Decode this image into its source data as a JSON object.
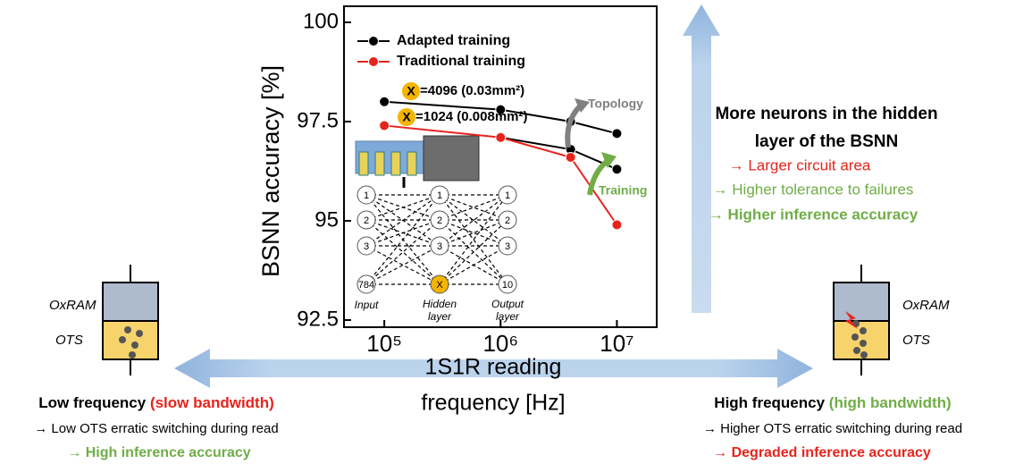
{
  "chart_data": {
    "type": "line",
    "ylabel": "BSNN accuracy [%]",
    "xlabel": [
      "1S1R reading",
      "frequency [Hz]"
    ],
    "x": [
      100000,
      1000000,
      4000000,
      10000000
    ],
    "series": [
      {
        "name": "Adapted training",
        "color": "#000000",
        "values": [
          98.0,
          97.8,
          97.5,
          97.2
        ]
      },
      {
        "color": "#000000",
        "values": [
          null,
          97.1,
          96.8,
          96.3
        ]
      },
      {
        "name": "Traditional training",
        "color": "#e8231c",
        "values": [
          97.4,
          97.1,
          96.6,
          94.9
        ]
      }
    ],
    "xlog": true,
    "xlim": [
      45000,
      22000000
    ],
    "xticks": [
      {
        "value": 100000,
        "label": "10⁵"
      },
      {
        "value": 1000000,
        "label": "10⁶"
      },
      {
        "value": 10000000,
        "label": "10⁷"
      }
    ],
    "ylim": [
      92.5,
      100
    ],
    "yticks": [
      92.5,
      95,
      97.5,
      100
    ],
    "annotations": {
      "x_symbol": "X",
      "large": "=4096 (0.03mm²)",
      "small": "=1024 (0.008mm²)",
      "topology": "Topology",
      "training": "Training"
    }
  },
  "inset": {
    "input_nodes": [
      "1",
      "2",
      "3",
      "784"
    ],
    "hidden_nodes": [
      "1",
      "2",
      "3",
      "X"
    ],
    "output_nodes": [
      "1",
      "2",
      "3",
      "10"
    ],
    "input_label": "Input",
    "hidden_label": [
      "Hidden",
      "layer"
    ],
    "output_label": [
      "Output",
      "layer"
    ]
  },
  "device_labels": {
    "oxram": "OxRAM",
    "ots": "OTS"
  },
  "right_text": {
    "title": [
      "More neurons in the hidden",
      "layer of the BSNN"
    ],
    "effects": [
      "→ Larger circuit area",
      "→ Higher tolerance to failures",
      "→ Higher inference accuracy"
    ]
  },
  "low_frequency": {
    "title": "Low frequency",
    "bandwidth": "(slow bandwidth)",
    "effect": "→ Low OTS erratic switching during read",
    "result": "→ High inference accuracy"
  },
  "high_frequency": {
    "title": "High frequency",
    "bandwidth": "(high bandwidth)",
    "effect": "→ Higher OTS erratic switching during read",
    "result": "→ Degraded inference accuracy"
  }
}
